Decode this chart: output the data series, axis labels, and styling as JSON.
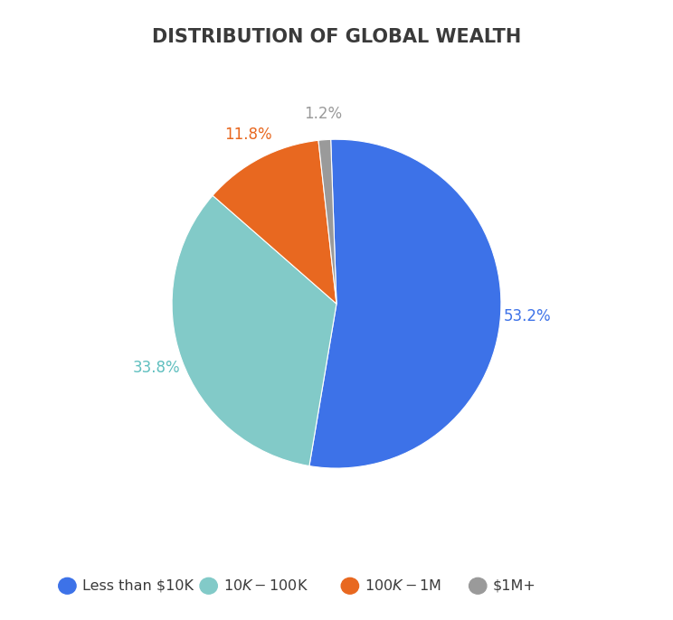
{
  "title": "DISTRIBUTION OF GLOBAL WEALTH",
  "title_color": "#3a3a3a",
  "title_fontsize": 15,
  "slices": [
    53.2,
    33.8,
    11.8,
    1.2
  ],
  "labels": [
    "Less than $10K",
    "$10K-$100K",
    "$100K-$1M",
    "$1M+"
  ],
  "colors": [
    "#3d72e8",
    "#82cac8",
    "#e86820",
    "#9a9a9a"
  ],
  "pct_labels": [
    "53.2%",
    "33.8%",
    "11.8%",
    "1.2%"
  ],
  "pct_colors": [
    "#3d72e8",
    "#5fbfbf",
    "#e86820",
    "#9a9a9a"
  ],
  "background_color": "#ffffff",
  "legend_fontsize": 11.5,
  "pct_fontsize": 12,
  "startangle": 92
}
